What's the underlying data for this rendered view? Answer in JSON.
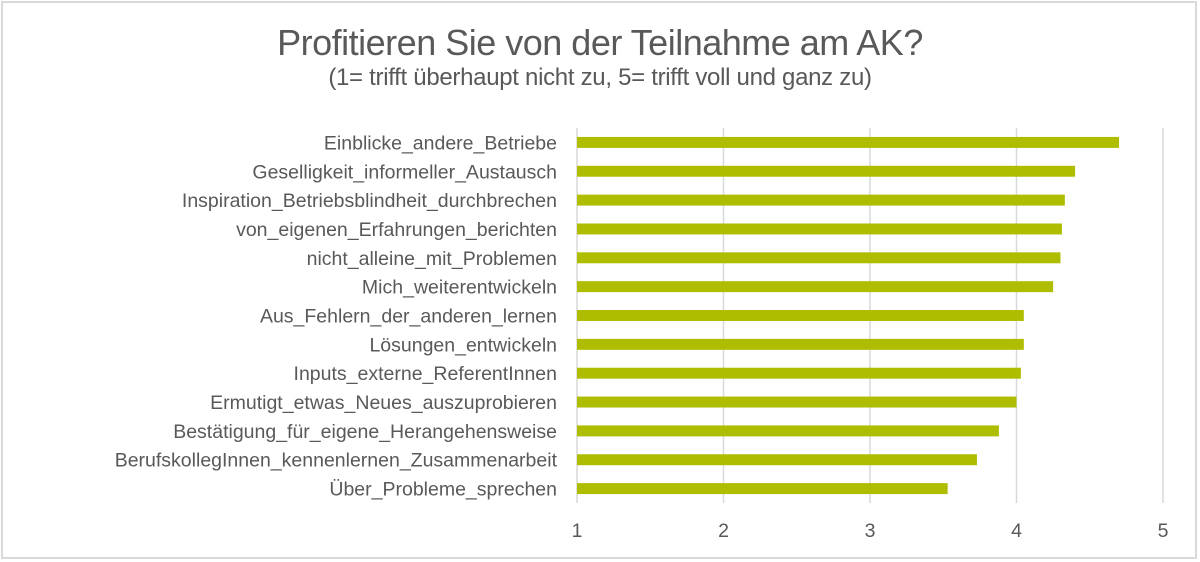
{
  "chart_data": {
    "type": "bar",
    "orientation": "horizontal",
    "title": "Profitieren Sie von der Teilnahme am AK?",
    "subtitle": "(1= trifft überhaupt nicht zu, 5= trifft voll und ganz zu)",
    "xlabel": "",
    "ylabel": "",
    "xlim": [
      1,
      5
    ],
    "xticks": [
      "1",
      "2",
      "3",
      "4",
      "5"
    ],
    "grid": true,
    "legend": null,
    "bar_color": "#aebd00",
    "categories": [
      "Einblicke_andere_Betriebe",
      "Geselligkeit_informeller_Austausch",
      "Inspiration_Betriebsblindheit_durchbrechen",
      "von_eigenen_Erfahrungen_berichten",
      "nicht_alleine_mit_Problemen",
      "Mich_weiterentwickeln",
      "Aus_Fehlern_der_anderen_lernen",
      "Lösungen_entwickeln",
      "Inputs_externe_ReferentInnen",
      "Ermutigt_etwas_Neues_auszuprobieren",
      "Bestätigung_für_eigene_Herangehensweise",
      "BerufskollegInnen_kennenlernen_Zusammenarbeit",
      "Über_Probleme_sprechen"
    ],
    "values": [
      4.7,
      4.4,
      4.33,
      4.31,
      4.3,
      4.25,
      4.05,
      4.05,
      4.03,
      4.0,
      3.88,
      3.73,
      3.53
    ]
  }
}
